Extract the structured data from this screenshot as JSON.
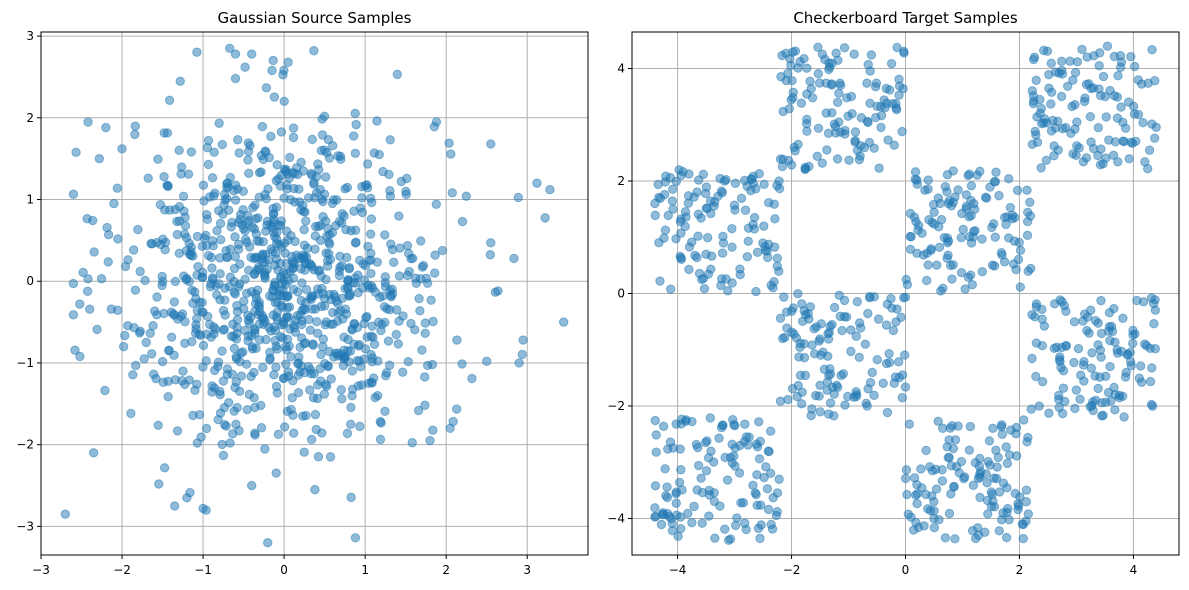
{
  "chart_data": [
    {
      "type": "scatter",
      "title": "Gaussian Source Samples",
      "xlabel": "",
      "ylabel": "",
      "xlim": [
        -3,
        3.75
      ],
      "ylim": [
        -3.35,
        3.05
      ],
      "xticks": [
        -3,
        -2,
        -1,
        0,
        1,
        2,
        3
      ],
      "xtick_labels": [
        "−3",
        "−2",
        "−1",
        "0",
        "1",
        "2",
        "3"
      ],
      "yticks": [
        -3,
        -2,
        -1,
        0,
        1,
        2,
        3
      ],
      "ytick_labels": [
        "−3",
        "−2",
        "−1",
        "0",
        "1",
        "2",
        "3"
      ],
      "grid": true,
      "marker_color": "#1f77b4",
      "marker_alpha": 0.5,
      "distribution": "standard normal, mean 0, std 1",
      "n_points": 1000,
      "points": [
        [
          -2.7,
          -2.85
        ],
        [
          3.45,
          -0.5
        ],
        [
          3.12,
          1.2
        ],
        [
          3.28,
          1.12
        ],
        [
          2.95,
          -0.72
        ],
        [
          2.9,
          -1.0
        ],
        [
          -2.52,
          -0.92
        ],
        [
          -2.42,
          0.03
        ],
        [
          -2.35,
          -2.1
        ],
        [
          -2.28,
          1.5
        ],
        [
          -2.2,
          1.88
        ],
        [
          -2.1,
          0.95
        ],
        [
          -2.0,
          1.62
        ],
        [
          -1.98,
          -0.8
        ],
        [
          0.88,
          -3.14
        ],
        [
          -1.0,
          -2.78
        ],
        [
          -1.2,
          -2.65
        ],
        [
          -1.35,
          -2.75
        ],
        [
          -0.6,
          2.78
        ],
        [
          -0.4,
          2.78
        ],
        [
          0.05,
          2.68
        ],
        [
          -0.6,
          2.48
        ],
        [
          1.88,
          1.95
        ],
        [
          2.55,
          1.68
        ],
        [
          2.55,
          0.47
        ],
        [
          2.5,
          -0.98
        ],
        [
          2.05,
          -1.8
        ],
        [
          1.8,
          -1.95
        ],
        [
          0.38,
          -2.55
        ],
        [
          -0.4,
          -2.5
        ]
      ]
    },
    {
      "type": "scatter",
      "title": "Checkerboard Target Samples",
      "xlabel": "",
      "ylabel": "",
      "xlim": [
        -4.8,
        4.8
      ],
      "ylim": [
        -4.65,
        4.65
      ],
      "xticks": [
        -4,
        -2,
        0,
        2,
        4
      ],
      "xtick_labels": [
        "−4",
        "−2",
        "0",
        "2",
        "4"
      ],
      "yticks": [
        -4,
        -2,
        0,
        2,
        4
      ],
      "ytick_labels": [
        "−4",
        "−2",
        "0",
        "2",
        "4"
      ],
      "grid": true,
      "marker_color": "#1f77b4",
      "marker_alpha": 0.5,
      "distribution": "uniform within the 8 occupied 2x2 squares of a checkerboard on [-4.4, 4.4]",
      "n_points_per_square": 125,
      "squares": [
        {
          "x": [
            -2.2,
            0
          ],
          "y": [
            2.2,
            4.4
          ]
        },
        {
          "x": [
            2.2,
            4.4
          ],
          "y": [
            2.2,
            4.4
          ]
        },
        {
          "x": [
            -4.4,
            -2.2
          ],
          "y": [
            0,
            2.2
          ]
        },
        {
          "x": [
            0,
            2.2
          ],
          "y": [
            0,
            2.2
          ]
        },
        {
          "x": [
            -2.2,
            0
          ],
          "y": [
            -2.2,
            0
          ]
        },
        {
          "x": [
            2.2,
            4.4
          ],
          "y": [
            -2.2,
            0
          ]
        },
        {
          "x": [
            -4.4,
            -2.2
          ],
          "y": [
            -4.4,
            -2.2
          ]
        },
        {
          "x": [
            0,
            2.2
          ],
          "y": [
            -4.4,
            -2.2
          ]
        }
      ]
    }
  ]
}
